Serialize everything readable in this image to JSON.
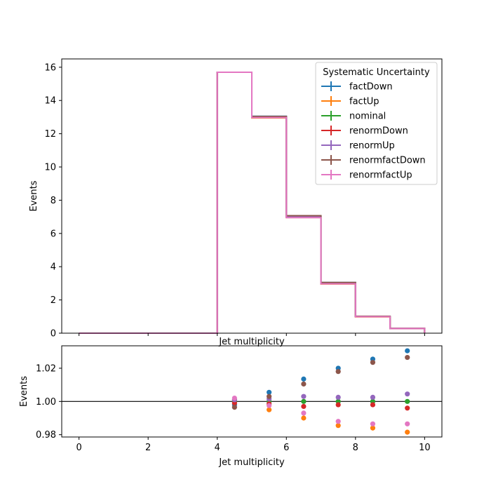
{
  "chart_data": [
    {
      "type": "step",
      "xlabel": "Jet multiplicity",
      "ylabel": "Events",
      "xlim": [
        -0.5,
        10.5
      ],
      "ylim": [
        0,
        16.5
      ],
      "x_ticks": [
        0,
        2,
        4,
        6,
        8,
        10
      ],
      "y_ticks": [
        0,
        2,
        4,
        6,
        8,
        10,
        12,
        14,
        16
      ],
      "grid": false,
      "legend_title": "Systematic Uncertainty",
      "legend_placement": "top-right",
      "bin_edges": [
        0,
        1,
        2,
        3,
        4,
        5,
        6,
        7,
        8,
        9,
        10
      ],
      "series": [
        {
          "name": "factDown",
          "color": "#1f77b4",
          "values": [
            0,
            0,
            0,
            0,
            15.7,
            13.05,
            7.06,
            3.05,
            1.0,
            0.29
          ]
        },
        {
          "name": "factUp",
          "color": "#ff7f0e",
          "values": [
            0,
            0,
            0,
            0,
            15.7,
            12.95,
            6.96,
            2.96,
            0.98,
            0.28
          ]
        },
        {
          "name": "nominal",
          "color": "#2ca02c",
          "values": [
            0,
            0,
            0,
            0,
            15.7,
            13.0,
            7.0,
            3.0,
            1.0,
            0.29
          ]
        },
        {
          "name": "renormDown",
          "color": "#d62728",
          "values": [
            0,
            0,
            0,
            0,
            15.7,
            12.99,
            6.98,
            2.99,
            0.99,
            0.28
          ]
        },
        {
          "name": "renormUp",
          "color": "#9467bd",
          "values": [
            0,
            0,
            0,
            0,
            15.7,
            13.01,
            7.02,
            3.01,
            1.0,
            0.29
          ]
        },
        {
          "name": "renormfactDown",
          "color": "#8c564b",
          "values": [
            0,
            0,
            0,
            0,
            15.7,
            13.04,
            7.07,
            3.05,
            1.02,
            0.29
          ]
        },
        {
          "name": "renormfactUp",
          "color": "#e377c2",
          "values": [
            0,
            0,
            0,
            0,
            15.7,
            12.97,
            6.95,
            2.97,
            0.99,
            0.28
          ]
        }
      ],
      "partial_xlabel_text": "Jet multiplicity"
    },
    {
      "type": "scatter",
      "xlabel": "Jet multiplicity",
      "ylabel": "Events",
      "xlim": [
        -0.5,
        10.5
      ],
      "ylim": [
        0.9786,
        1.0335
      ],
      "x_ticks": [
        0,
        2,
        4,
        6,
        8,
        10
      ],
      "y_ticks": [
        0.98,
        1.0,
        1.02
      ],
      "y_tick_labels": [
        "0.98",
        "1.00",
        "1.02"
      ],
      "reference_line": 1.0,
      "grid": false,
      "x": [
        4.5,
        5.5,
        6.5,
        7.5,
        8.5,
        9.5
      ],
      "series": [
        {
          "name": "factDown",
          "color": "#1f77b4",
          "values": [
            0.998,
            1.0055,
            1.0135,
            1.02,
            1.0255,
            1.0305
          ]
        },
        {
          "name": "factUp",
          "color": "#ff7f0e",
          "values": [
            1.001,
            0.995,
            0.99,
            0.9855,
            0.984,
            0.9815
          ]
        },
        {
          "name": "nominal",
          "color": "#2ca02c",
          "values": [
            1.0,
            1.0,
            1.0,
            1.0,
            1.0,
            1.0
          ]
        },
        {
          "name": "renormDown",
          "color": "#d62728",
          "values": [
            0.999,
            0.9985,
            0.997,
            0.998,
            0.998,
            0.996
          ]
        },
        {
          "name": "renormUp",
          "color": "#9467bd",
          "values": [
            1.001,
            1.0015,
            1.003,
            1.0025,
            1.0025,
            1.0045
          ]
        },
        {
          "name": "renormfactDown",
          "color": "#8c564b",
          "values": [
            0.9965,
            1.003,
            1.0105,
            1.018,
            1.0235,
            1.0265
          ]
        },
        {
          "name": "renormfactUp",
          "color": "#e377c2",
          "values": [
            1.002,
            0.9975,
            0.993,
            0.988,
            0.9865,
            0.9865
          ]
        }
      ]
    }
  ]
}
